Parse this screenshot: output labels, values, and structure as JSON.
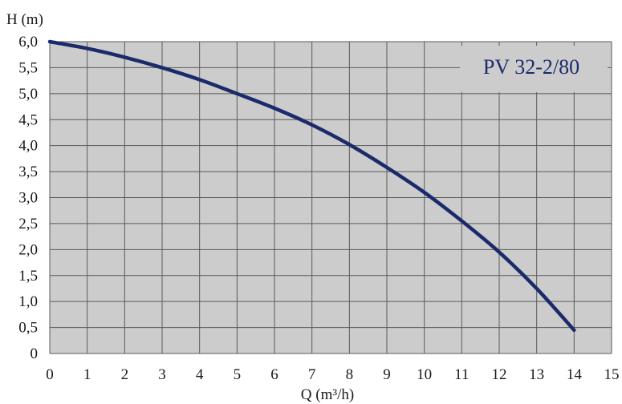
{
  "chart_data": {
    "type": "line",
    "title": "",
    "model_label": "PV 32-2/80",
    "xlabel": "Q (m³/h)",
    "ylabel": "H (m)",
    "xlim": [
      0,
      15
    ],
    "ylim": [
      0,
      6
    ],
    "x_ticks": [
      "0",
      "1",
      "2",
      "3",
      "4",
      "5",
      "6",
      "7",
      "8",
      "9",
      "10",
      "11",
      "12",
      "13",
      "14",
      "15"
    ],
    "y_ticks": [
      "0",
      "0,5",
      "1,0",
      "1,5",
      "2,0",
      "2,5",
      "3,0",
      "3,5",
      "4,0",
      "4,5",
      "5,0",
      "5,5",
      "6,0"
    ],
    "grid": true,
    "series": [
      {
        "x": [
          0,
          1,
          2,
          3,
          4,
          5,
          6,
          7,
          8,
          9,
          10,
          11,
          12,
          13,
          14
        ],
        "y": [
          6.0,
          5.87,
          5.7,
          5.5,
          5.27,
          5.0,
          4.72,
          4.4,
          4.02,
          3.58,
          3.1,
          2.55,
          1.95,
          1.25,
          0.45
        ]
      }
    ],
    "colors": {
      "line": "#1b2a6b",
      "plot_bg": "#cccccc",
      "grid": "#5a5a5a",
      "model_label": "#1b2a6b"
    }
  }
}
